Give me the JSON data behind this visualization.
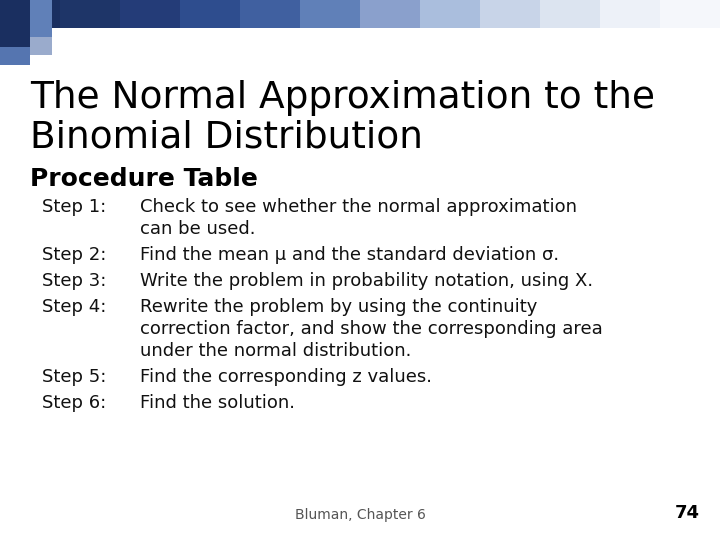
{
  "title_line1": "The Normal Approximation to the",
  "title_line2": "Binomial Distribution",
  "subtitle": "Procedure Table",
  "bg_color": "#ffffff",
  "title_color": "#000000",
  "subtitle_color": "#000000",
  "body_color": "#111111",
  "footer_text": "Bluman, Chapter 6",
  "footer_page": "74",
  "steps": [
    {
      "label": "Step 1:",
      "lines": [
        "Check to see whether the normal approximation",
        "can be used."
      ]
    },
    {
      "label": "Step 2:",
      "lines": [
        "Find the mean μ and the standard deviation σ."
      ]
    },
    {
      "label": "Step 3:",
      "lines": [
        "Write the problem in probability notation, using Χ."
      ]
    },
    {
      "label": "Step 4:",
      "lines": [
        "Rewrite the problem by using the continuity",
        "correction factor, and show the corresponding area",
        "under the normal distribution."
      ]
    },
    {
      "label": "Step 5:",
      "lines": [
        "Find the corresponding z values."
      ]
    },
    {
      "label": "Step 6:",
      "lines": [
        "Find the solution."
      ]
    }
  ]
}
